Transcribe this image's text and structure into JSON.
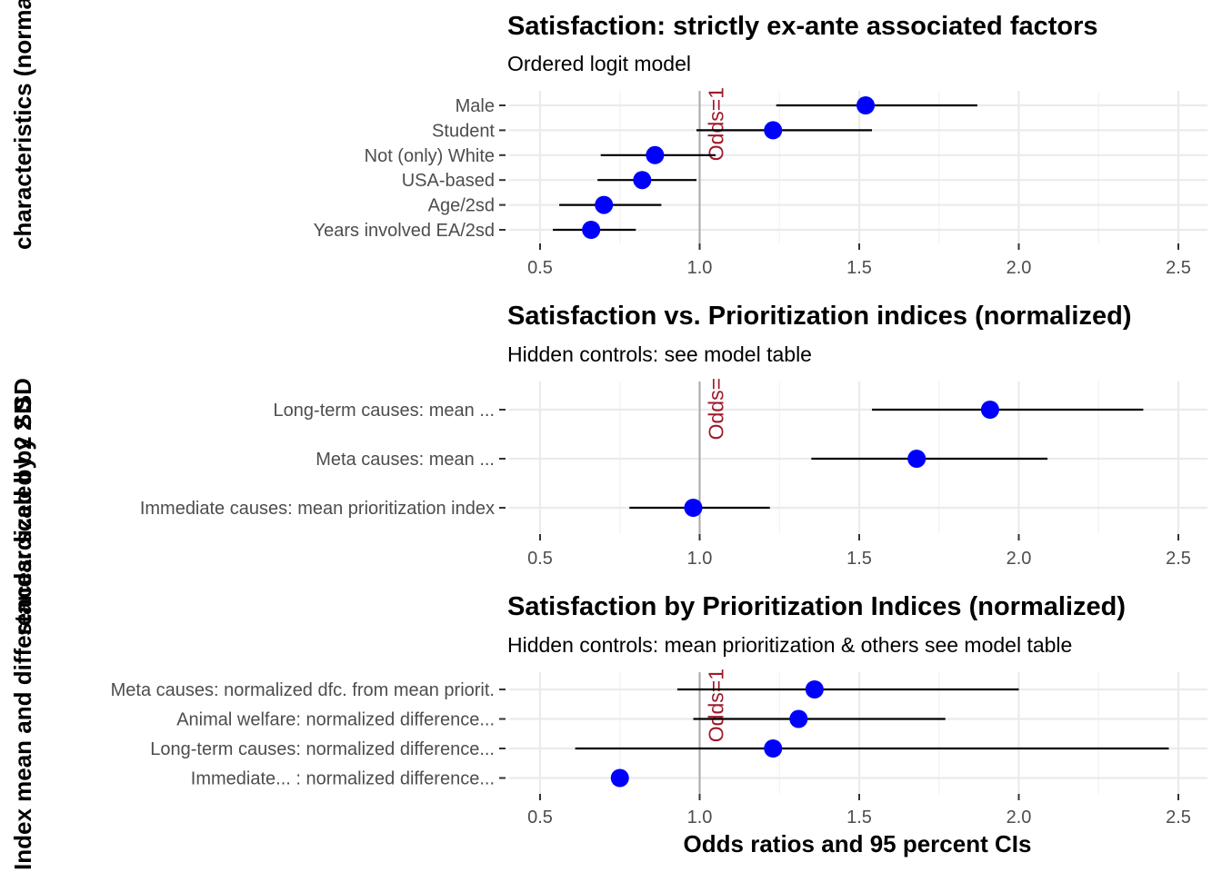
{
  "chart_data": {
    "type": "forest",
    "xlabel": "Odds ratios and 95 percent CIs",
    "ylabel_fragments": [
      "Index mean and differences: scaled by 2 SD",
      "standardized by 2 SD",
      "characteristics (normalized)"
    ],
    "xlim": [
      0.5,
      2.5
    ],
    "xticks": [
      0.5,
      1.0,
      1.5,
      2.0,
      2.5
    ],
    "xtick_labels": [
      "0.5",
      "1.0",
      "1.5",
      "2.0",
      "2.5"
    ],
    "reference_line": {
      "x": 1,
      "label": "Odds=1"
    },
    "colors": {
      "point": "#0000ff",
      "ci": "#000000",
      "reference": "#aaaaaa",
      "annotation": "#a0192b"
    },
    "panels": [
      {
        "title": "Satisfaction: strictly ex-ante associated factors",
        "subtitle": "Ordered logit model",
        "annotation": "Odds=1",
        "terms": [
          {
            "label": "Male",
            "estimate": 1.52,
            "low": 1.24,
            "high": 1.87
          },
          {
            "label": "Student",
            "estimate": 1.23,
            "low": 0.99,
            "high": 1.54
          },
          {
            "label": "Not (only) White",
            "estimate": 0.86,
            "low": 0.69,
            "high": 1.05
          },
          {
            "label": "USA-based",
            "estimate": 0.82,
            "low": 0.68,
            "high": 0.99
          },
          {
            "label": "Age/2sd",
            "estimate": 0.7,
            "low": 0.56,
            "high": 0.88
          },
          {
            "label": "Years involved EA/2sd",
            "estimate": 0.66,
            "low": 0.54,
            "high": 0.8
          }
        ]
      },
      {
        "title": "Satisfaction vs. Prioritization indices (normalized)",
        "subtitle": "Hidden controls: see model table",
        "annotation": "Odds=",
        "terms": [
          {
            "label": "Long-term causes: mean ...",
            "estimate": 1.91,
            "low": 1.54,
            "high": 2.39
          },
          {
            "label": "Meta causes: mean ...",
            "estimate": 1.68,
            "low": 1.35,
            "high": 2.09
          },
          {
            "label": "Immediate causes: mean prioritization index",
            "estimate": 0.98,
            "low": 0.78,
            "high": 1.22
          }
        ]
      },
      {
        "title": "Satisfaction by Prioritization Indices (normalized)",
        "subtitle": "Hidden controls:  mean prioritization & others see model table",
        "annotation": "Odds=1",
        "terms": [
          {
            "label": "Meta causes: normalized dfc. from mean priorit.",
            "estimate": 1.36,
            "low": 0.93,
            "high": 2.0
          },
          {
            "label": "Animal welfare: normalized difference...",
            "estimate": 1.31,
            "low": 0.98,
            "high": 1.77
          },
          {
            "label": "Long-term causes: normalized difference...",
            "estimate": 1.23,
            "low": 0.61,
            "high": 2.47
          },
          {
            "label": "Immediate... : normalized difference...",
            "estimate": 0.75,
            "low": null,
            "high": null
          }
        ]
      }
    ]
  }
}
